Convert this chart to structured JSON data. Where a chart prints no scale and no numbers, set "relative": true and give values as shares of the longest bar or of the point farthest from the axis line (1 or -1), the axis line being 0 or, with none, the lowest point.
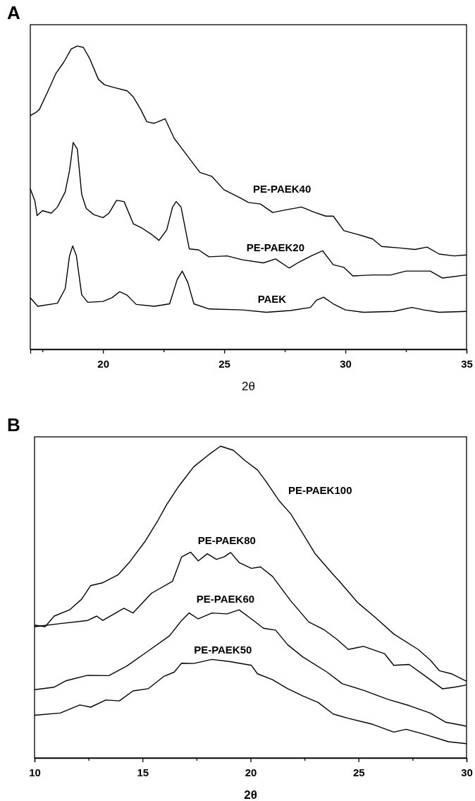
{
  "chart_data": [
    {
      "type": "line",
      "title": "A",
      "xlabel": "2θ",
      "relative": true,
      "xlim": [
        17,
        35
      ],
      "xticks": [
        {
          "value": 17.5,
          "label": null
        },
        20,
        {
          "value": 22.5,
          "label": null
        },
        25,
        {
          "value": 27.5,
          "label": null
        },
        30,
        {
          "value": 32.5,
          "label": null
        },
        35
      ],
      "series": [
        {
          "name": "PE-PAEK40",
          "color": "#000000",
          "x": [
            17.0,
            17.25,
            17.37,
            17.75,
            18.06,
            18.37,
            18.69,
            18.94,
            19.19,
            19.44,
            19.81,
            20.06,
            20.5,
            21.0,
            21.25,
            21.56,
            21.81,
            22.12,
            22.56,
            22.94,
            23.5,
            24.0,
            24.49,
            24.99,
            25.62,
            26.0,
            26.5,
            27.0,
            27.5,
            28.19,
            28.75,
            29.19,
            29.5,
            29.94,
            30.5,
            31.12,
            31.5,
            32.25,
            32.87,
            33.37,
            33.87,
            34.49,
            35.0
          ],
          "values": [
            0.77,
            0.782,
            0.79,
            0.855,
            0.91,
            0.945,
            0.99,
            1.0,
            0.995,
            0.96,
            0.89,
            0.872,
            0.862,
            0.852,
            0.832,
            0.79,
            0.75,
            0.745,
            0.76,
            0.695,
            0.636,
            0.583,
            0.57,
            0.526,
            0.501,
            0.484,
            0.479,
            0.451,
            0.459,
            0.469,
            0.451,
            0.439,
            0.439,
            0.391,
            0.379,
            0.364,
            0.339,
            0.334,
            0.329,
            0.337,
            0.314,
            0.308,
            0.311
          ]
        },
        {
          "name": "PE-PAEK20",
          "color": "#000000",
          "x": [
            17.0,
            17.19,
            17.28,
            17.5,
            17.87,
            18.12,
            18.44,
            18.62,
            18.77,
            18.94,
            19.12,
            19.31,
            19.62,
            20.0,
            20.25,
            20.56,
            20.87,
            21.25,
            21.62,
            22.0,
            22.31,
            22.63,
            22.87,
            23.02,
            23.22,
            23.56,
            23.94,
            24.37,
            25.12,
            25.75,
            26.62,
            27.12,
            27.68,
            28.12,
            28.62,
            29.06,
            29.5,
            29.94,
            30.31,
            31.12,
            31.87,
            32.5,
            33.5,
            34.0,
            35.0
          ],
          "values": [
            0.529,
            0.489,
            0.441,
            0.457,
            0.449,
            0.469,
            0.519,
            0.59,
            0.682,
            0.66,
            0.511,
            0.464,
            0.444,
            0.434,
            0.449,
            0.491,
            0.487,
            0.414,
            0.399,
            0.379,
            0.359,
            0.394,
            0.469,
            0.487,
            0.469,
            0.331,
            0.328,
            0.305,
            0.308,
            0.295,
            0.285,
            0.298,
            0.268,
            0.289,
            0.309,
            0.325,
            0.279,
            0.27,
            0.242,
            0.245,
            0.245,
            0.258,
            0.258,
            0.235,
            0.245
          ]
        },
        {
          "name": "PAEK",
          "color": "#000000",
          "x": [
            17.0,
            17.31,
            18.12,
            18.44,
            18.62,
            18.75,
            18.9,
            19.12,
            19.37,
            20.0,
            20.37,
            20.69,
            21.0,
            21.37,
            22.12,
            22.75,
            23.06,
            23.27,
            23.5,
            23.75,
            24.37,
            25.75,
            26.74,
            27.74,
            28.56,
            28.81,
            29.1,
            29.5,
            30.0,
            30.75,
            32.0,
            32.74,
            33.24,
            33.87,
            35.0
          ],
          "values": [
            0.17,
            0.142,
            0.152,
            0.2,
            0.309,
            0.341,
            0.309,
            0.18,
            0.155,
            0.158,
            0.17,
            0.19,
            0.178,
            0.148,
            0.142,
            0.15,
            0.23,
            0.258,
            0.22,
            0.15,
            0.133,
            0.13,
            0.122,
            0.128,
            0.138,
            0.162,
            0.172,
            0.15,
            0.13,
            0.122,
            0.125,
            0.138,
            0.13,
            0.122,
            0.125
          ]
        }
      ]
    },
    {
      "type": "line",
      "title": "B",
      "xlabel": "2θ",
      "relative": true,
      "xlim": [
        10,
        30
      ],
      "xticks": [
        10,
        {
          "value": 12.5,
          "label": null
        },
        15,
        {
          "value": 17.5,
          "label": null
        },
        20,
        {
          "value": 22.5,
          "label": null
        },
        25,
        {
          "value": 27.5,
          "label": null
        },
        30
      ],
      "series": [
        {
          "name": "PE-PAEK100",
          "color": "#000000",
          "x": [
            10.0,
            10.49,
            10.91,
            11.62,
            12.18,
            12.6,
            13.16,
            13.86,
            14.42,
            15.12,
            15.69,
            16.11,
            16.67,
            17.37,
            18.07,
            18.61,
            19.2,
            19.76,
            20.32,
            20.74,
            21.3,
            21.86,
            22.42,
            22.98,
            23.83,
            24.11,
            24.95,
            25.79,
            26.64,
            27.76,
            28.32,
            28.74,
            29.3,
            30.0
          ],
          "values": [
            0.426,
            0.421,
            0.455,
            0.475,
            0.509,
            0.553,
            0.562,
            0.587,
            0.63,
            0.695,
            0.759,
            0.812,
            0.871,
            0.934,
            0.973,
            1.0,
            0.987,
            0.953,
            0.924,
            0.885,
            0.827,
            0.783,
            0.72,
            0.656,
            0.588,
            0.567,
            0.499,
            0.45,
            0.397,
            0.348,
            0.314,
            0.28,
            0.27,
            0.246
          ]
        },
        {
          "name": "PE-PAEK80",
          "color": "#000000",
          "x": [
            10.0,
            11.19,
            12.46,
            12.88,
            13.16,
            14.14,
            14.56,
            15.41,
            16.39,
            16.81,
            17.23,
            17.58,
            18.0,
            18.42,
            18.77,
            19.08,
            19.47,
            20.04,
            20.46,
            21.02,
            21.86,
            22.7,
            23.41,
            23.97,
            24.53,
            25.23,
            26.21,
            26.63,
            27.34,
            28.04,
            28.88,
            29.44,
            30.0
          ],
          "values": [
            0.421,
            0.431,
            0.441,
            0.455,
            0.441,
            0.48,
            0.465,
            0.528,
            0.567,
            0.645,
            0.66,
            0.632,
            0.655,
            0.637,
            0.645,
            0.659,
            0.627,
            0.608,
            0.613,
            0.582,
            0.504,
            0.436,
            0.411,
            0.382,
            0.348,
            0.358,
            0.334,
            0.297,
            0.3,
            0.265,
            0.222,
            0.227,
            0.234
          ]
        },
        {
          "name": "PE-PAEK60",
          "color": "#000000",
          "x": [
            10.0,
            10.91,
            11.47,
            12.46,
            13.44,
            14.28,
            15.26,
            16.25,
            16.81,
            17.16,
            17.58,
            18.21,
            18.91,
            19.47,
            20.04,
            20.6,
            21.16,
            21.72,
            22.42,
            23.55,
            24.25,
            25.23,
            26.35,
            27.34,
            28.32,
            29.02,
            30.0
          ],
          "values": [
            0.219,
            0.227,
            0.248,
            0.265,
            0.264,
            0.295,
            0.343,
            0.392,
            0.441,
            0.465,
            0.446,
            0.465,
            0.462,
            0.475,
            0.446,
            0.416,
            0.41,
            0.363,
            0.324,
            0.275,
            0.238,
            0.217,
            0.188,
            0.168,
            0.144,
            0.115,
            0.102
          ]
        },
        {
          "name": "PE-PAEK50",
          "color": "#000000",
          "x": [
            10.0,
            11.19,
            12.1,
            12.6,
            13.3,
            13.93,
            14.56,
            15.26,
            15.97,
            16.46,
            16.81,
            17.37,
            18.21,
            19.05,
            20.04,
            20.32,
            21.02,
            21.72,
            22.42,
            23.13,
            23.83,
            24.53,
            25.65,
            26.63,
            27.2,
            28.04,
            29.16,
            30.0
          ],
          "values": [
            0.137,
            0.144,
            0.17,
            0.163,
            0.186,
            0.183,
            0.215,
            0.222,
            0.261,
            0.275,
            0.304,
            0.303,
            0.316,
            0.309,
            0.297,
            0.27,
            0.251,
            0.222,
            0.199,
            0.178,
            0.141,
            0.127,
            0.108,
            0.083,
            0.092,
            0.076,
            0.052,
            0.046
          ]
        }
      ]
    }
  ]
}
